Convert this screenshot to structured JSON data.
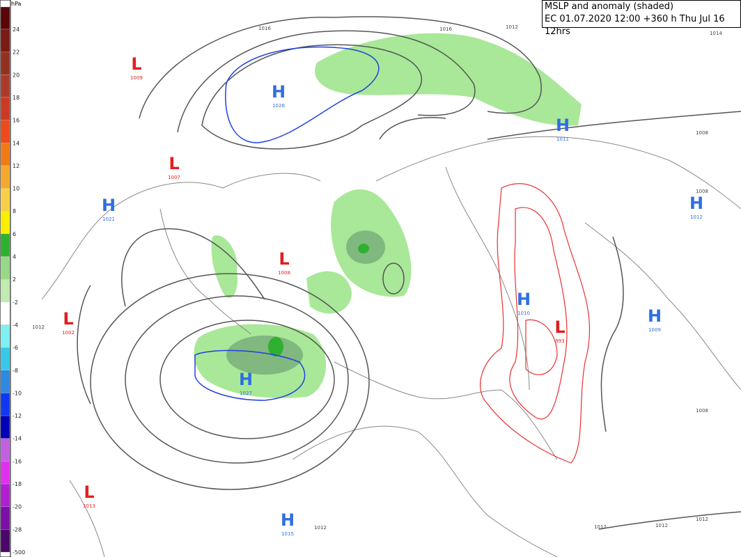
{
  "header": {
    "title": "MSLP and anomaly (shaded)",
    "subtitle": "EC 01.07.2020 12:00 +360 h Thu Jul 16 12hrs"
  },
  "legend": {
    "unit": "hPa",
    "labels": [
      "24",
      "22",
      "20",
      "18",
      "16",
      "14",
      "12",
      "10",
      "8",
      "6",
      "4",
      "2",
      "-2",
      "-4",
      "-6",
      "-8",
      "-10",
      "-12",
      "-14",
      "-16",
      "-18",
      "-20",
      "-28",
      "-500"
    ],
    "colors": [
      "#5a0606",
      "#7a1a12",
      "#923022",
      "#ac3a2a",
      "#cc3a26",
      "#ee4a1c",
      "#f07a18",
      "#f4a830",
      "#f8d048",
      "#f8f000",
      "#30b030",
      "#98d888",
      "#c0ecb0",
      "#ffffff",
      "#80f0f0",
      "#38c8e8",
      "#3088e0",
      "#1038f0",
      "#0000b8",
      "#c060e0",
      "#e030f0",
      "#b020d0",
      "#7a10a8",
      "#4a0868"
    ]
  },
  "centers": [
    {
      "label": "L",
      "value": "1009"
    },
    {
      "label": "H",
      "value": "1028"
    },
    {
      "label": "L",
      "value": "1007"
    },
    {
      "label": "H",
      "value": "1021"
    },
    {
      "label": "L",
      "value": "1008"
    },
    {
      "label": "L",
      "value": "1002"
    },
    {
      "label": "H",
      "value": "1027"
    },
    {
      "label": "H",
      "value": "1011"
    },
    {
      "label": "H",
      "value": "1012"
    },
    {
      "label": "H",
      "value": "1010"
    },
    {
      "label": "L",
      "value": "993"
    },
    {
      "label": "H",
      "value": "1009"
    },
    {
      "label": "L",
      "value": "1013"
    },
    {
      "label": "H",
      "value": "1015"
    }
  ],
  "isobar_labels": [
    "1016",
    "1016",
    "1012",
    "1014",
    "1008",
    "1008",
    "1008",
    "1012",
    "1012",
    "1012",
    "1012",
    "1012"
  ]
}
